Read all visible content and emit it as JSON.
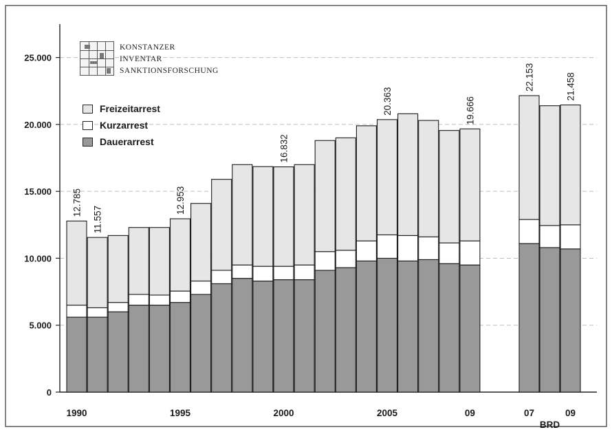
{
  "logo": {
    "line1": "KONSTANZER",
    "line2": "INVENTAR",
    "line3": "SANKTIONSFORSCHUNG"
  },
  "legend": [
    {
      "name": "Freizeitarrest",
      "color": "#e6e6e6"
    },
    {
      "name": "Kurzarrest",
      "color": "#ffffff"
    },
    {
      "name": "Dauerarrest",
      "color": "#999999"
    }
  ],
  "chart_data": {
    "type": "bar",
    "stacked": true,
    "ylim": [
      0,
      27500
    ],
    "yticks": [
      0,
      5000,
      10000,
      15000,
      20000,
      25000
    ],
    "ytick_labels": [
      "0",
      "5.000",
      "10.000",
      "15.000",
      "20.000",
      "25.000"
    ],
    "grid": "dashed horizontal",
    "groups": [
      {
        "name": "",
        "categories": [
          "1990",
          "1991",
          "1992",
          "1993",
          "1994",
          "1995",
          "1996",
          "1997",
          "1998",
          "1999",
          "2000",
          "2001",
          "2002",
          "2003",
          "2004",
          "2005",
          "2006",
          "2007",
          "2008",
          "2009"
        ],
        "series": [
          {
            "name": "Dauerarrest",
            "values": [
              5600,
              5600,
              6000,
              6500,
              6500,
              6700,
              7300,
              8100,
              8500,
              8300,
              8400,
              8400,
              9100,
              9300,
              9800,
              10000,
              9800,
              9900,
              9600,
              9500
            ]
          },
          {
            "name": "Kurzarrest",
            "values": [
              900,
              700,
              700,
              800,
              750,
              850,
              1000,
              1000,
              1000,
              1100,
              1000,
              1100,
              1400,
              1300,
              1500,
              1750,
              1900,
              1700,
              1550,
              1800
            ]
          },
          {
            "name": "Freizeitarrest",
            "values": [
              6285,
              5257,
              5000,
              5000,
              5050,
              5403,
              5800,
              6800,
              7500,
              7450,
              7432,
              7500,
              8300,
              8400,
              8600,
              8613,
              9100,
              8700,
              8400,
              8366
            ]
          }
        ],
        "xtick_labels": [
          {
            "index": 0,
            "label": "1990"
          },
          {
            "index": 5,
            "label": "1995"
          },
          {
            "index": 10,
            "label": "2000"
          },
          {
            "index": 15,
            "label": "2005"
          },
          {
            "index": 19,
            "label": "09"
          }
        ],
        "totals_labels": [
          {
            "index": 0,
            "label": "12.785"
          },
          {
            "index": 1,
            "label": "11.557"
          },
          {
            "index": 5,
            "label": "12.953"
          },
          {
            "index": 10,
            "label": "16.832"
          },
          {
            "index": 15,
            "label": "20.363"
          },
          {
            "index": 19,
            "label": "19.666"
          }
        ]
      },
      {
        "name": "BRD",
        "categories": [
          "2007",
          "2008",
          "2009"
        ],
        "series": [
          {
            "name": "Dauerarrest",
            "values": [
              11100,
              10800,
              10700
            ]
          },
          {
            "name": "Kurzarrest",
            "values": [
              1800,
              1650,
              1800
            ]
          },
          {
            "name": "Freizeitarrest",
            "values": [
              9253,
              8950,
              8958
            ]
          }
        ],
        "xtick_labels": [
          {
            "index": 0,
            "label": "07"
          },
          {
            "index": 2,
            "label": "09"
          }
        ],
        "totals_labels": [
          {
            "index": 0,
            "label": "22.153"
          },
          {
            "index": 2,
            "label": "21.458"
          }
        ]
      }
    ]
  }
}
